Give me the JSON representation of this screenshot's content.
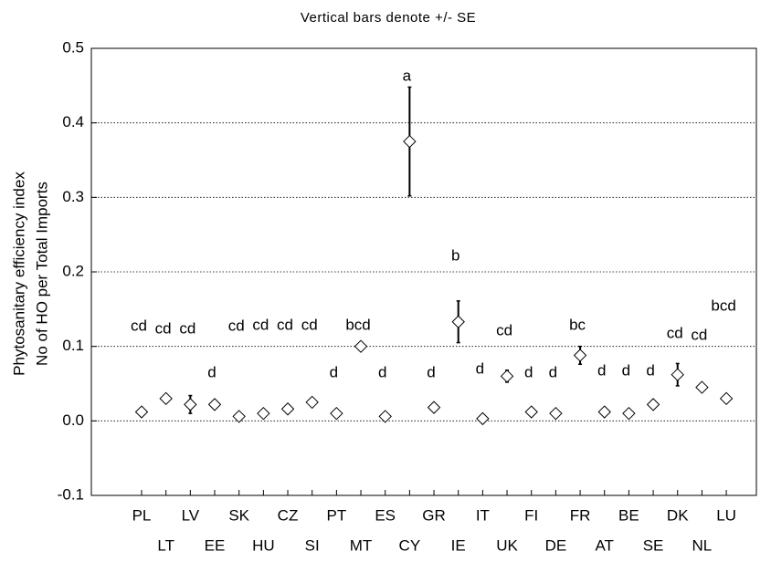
{
  "chart_data": {
    "type": "dot_error",
    "title": "Vertical bars denote +/- SE",
    "y_label_lines": [
      "Phytosanitary efficiency index",
      "No of HO per Total Imports"
    ],
    "categories": [
      "PL",
      "LT",
      "LV",
      "EE",
      "SK",
      "HU",
      "CZ",
      "SI",
      "PT",
      "MT",
      "ES",
      "CY",
      "GR",
      "IE",
      "IT",
      "UK",
      "FI",
      "DE",
      "FR",
      "AT",
      "BE",
      "SE",
      "DK",
      "NL",
      "LU"
    ],
    "values": [
      0.012,
      0.03,
      0.022,
      0.022,
      0.006,
      0.01,
      0.016,
      0.025,
      0.01,
      0.1,
      0.006,
      0.375,
      0.018,
      0.133,
      0.003,
      0.06,
      0.012,
      0.01,
      0.088,
      0.012,
      0.01,
      0.022,
      0.062,
      0.045,
      0.03
    ],
    "errors": [
      null,
      null,
      0.012,
      null,
      null,
      null,
      null,
      null,
      null,
      null,
      null,
      0.073,
      null,
      0.028,
      null,
      0.008,
      null,
      null,
      0.012,
      null,
      null,
      null,
      0.015,
      0.005,
      null
    ],
    "letters": [
      "cd",
      "cd",
      "cd",
      "d",
      "cd",
      "cd",
      "cd",
      "cd",
      "d",
      "bcd",
      "d",
      "a",
      "d",
      "b",
      "d",
      "cd",
      "d",
      "d",
      "bc",
      "d",
      "d",
      "d",
      "cd",
      "cd",
      "bcd"
    ],
    "ylim": [
      -0.1,
      0.5
    ],
    "yticks": [
      -0.1,
      {
        "value": 0,
        "label": "0.0"
      },
      0.1,
      0.2,
      0.3,
      0.4,
      0.5
    ],
    "grid": true
  }
}
